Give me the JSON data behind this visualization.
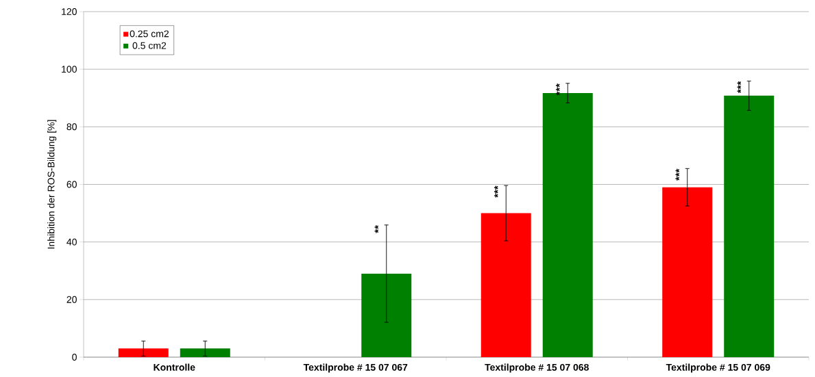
{
  "chart_data": {
    "type": "bar",
    "ylabel": "Inhibition der ROS-Bildung [%]",
    "categories": [
      "Kontrolle",
      "Textilprobe # 15 07 067",
      "Textilprobe # 15 07 068",
      "Textilprobe # 15 07 069"
    ],
    "series": [
      {
        "name": "0.25 cm2",
        "color": "#ff0000",
        "values": [
          3,
          null,
          50,
          59
        ],
        "errors": [
          2.6,
          null,
          9.6,
          6.5
        ]
      },
      {
        "name": "0.5 cm2",
        "color": "#008000",
        "values": [
          3,
          29,
          91.7,
          90.8
        ],
        "errors": [
          2.6,
          16.9,
          3.4,
          5.1
        ]
      }
    ],
    "ylim": [
      0,
      120
    ],
    "yticks": [
      0,
      20,
      40,
      60,
      80,
      100,
      120
    ],
    "grid": "y",
    "legend": "top left",
    "annotations": [
      "**",
      "***",
      "***",
      "***",
      "***"
    ]
  }
}
